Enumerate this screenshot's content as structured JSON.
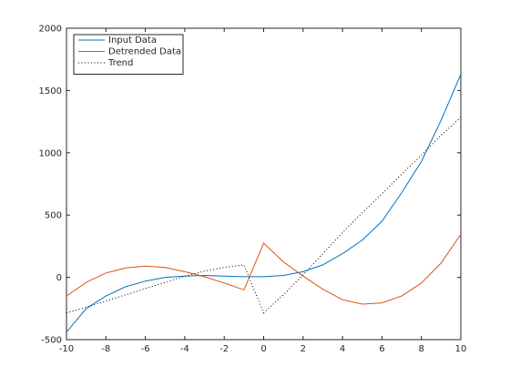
{
  "chart_data": {
    "type": "line",
    "title": "",
    "xlabel": "",
    "ylabel": "",
    "xlim": [
      -10,
      10
    ],
    "ylim": [
      -500,
      2000
    ],
    "x_ticks": [
      -10,
      -8,
      -6,
      -4,
      -2,
      0,
      2,
      4,
      6,
      8,
      10
    ],
    "y_ticks": [
      -500,
      0,
      500,
      1000,
      1500,
      2000
    ],
    "grid": false,
    "legend_position": "top-left",
    "x": [
      -10,
      -9,
      -8,
      -7,
      -6,
      -5,
      -4,
      -3,
      -2,
      -1,
      0,
      1,
      2,
      3,
      4,
      5,
      6,
      7,
      8,
      9,
      10
    ],
    "series": [
      {
        "name": "Input Data",
        "color": "#0072BD",
        "style": "solid",
        "values": [
          -440,
          -250,
          -150,
          -75,
          -30,
          0,
          10,
          15,
          10,
          5,
          5,
          15,
          45,
          100,
          190,
          300,
          450,
          680,
          930,
          1260,
          1630
        ]
      },
      {
        "name": "Detrended Data",
        "color": "#D95319",
        "style": "solid",
        "values": [
          -150,
          -40,
          35,
          75,
          90,
          80,
          45,
          5,
          -45,
          -100,
          275,
          125,
          10,
          -95,
          -180,
          -215,
          -205,
          -150,
          -45,
          115,
          345
        ]
      },
      {
        "name": "Trend",
        "color": "#000000",
        "style": "dotted",
        "values": [
          -285,
          -240,
          -190,
          -140,
          -90,
          -40,
          10,
          50,
          80,
          100,
          -285,
          -140,
          20,
          190,
          360,
          520,
          670,
          830,
          980,
          1140,
          1285
        ]
      }
    ]
  }
}
